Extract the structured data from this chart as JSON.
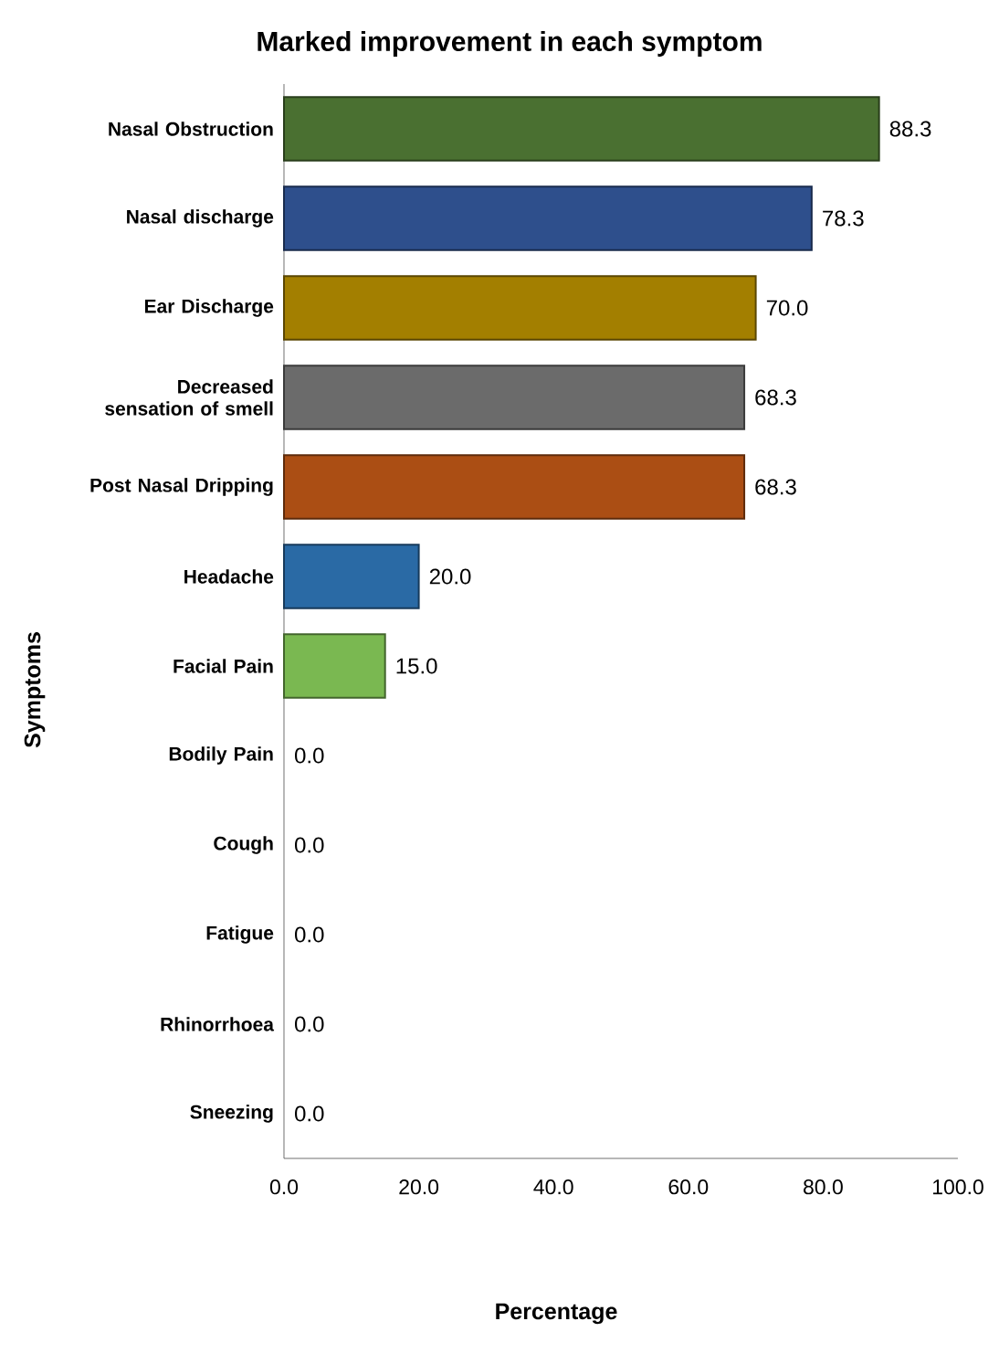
{
  "chart_data": {
    "type": "bar",
    "orientation": "horizontal",
    "title": "Marked improvement in each symptom",
    "xlabel": "Percentage",
    "ylabel": "Symptoms",
    "categories": [
      "Nasal Obstruction",
      "Nasal discharge",
      "Ear Discharge",
      "Decreased sensation of smell",
      "Post Nasal Dripping",
      "Headache",
      "Facial Pain",
      "Bodily Pain",
      "Cough",
      "Fatigue",
      "Rhinorrhoea",
      "Sneezing"
    ],
    "values": [
      88.3,
      78.3,
      70.0,
      68.3,
      68.3,
      20.0,
      15.0,
      0,
      0,
      0,
      0,
      0
    ],
    "value_labels": [
      "88.3",
      "78.3",
      "70.0",
      "68.3",
      "68.3",
      "20.0",
      "15.0",
      "0.0",
      "0.0",
      "0.0",
      "0.0",
      "0.0"
    ],
    "colors": [
      "#4a7031",
      "#2e4f8c",
      "#a37f00",
      "#6b6b6b",
      "#ab4e14",
      "#2a6aa5",
      "#7ab851",
      "#7ab851",
      "#7ab851",
      "#7ab851",
      "#7ab851",
      "#7ab851"
    ],
    "xlim": [
      0,
      100
    ],
    "xticks": [
      {
        "value": 0,
        "label": "0.0"
      },
      {
        "value": 20,
        "label": "20.0"
      },
      {
        "value": 40,
        "label": "40.0"
      },
      {
        "value": 60,
        "label": "60.0"
      },
      {
        "value": 80,
        "label": "80.0"
      },
      {
        "value": 100,
        "label": "100.0"
      }
    ],
    "grid": false
  }
}
